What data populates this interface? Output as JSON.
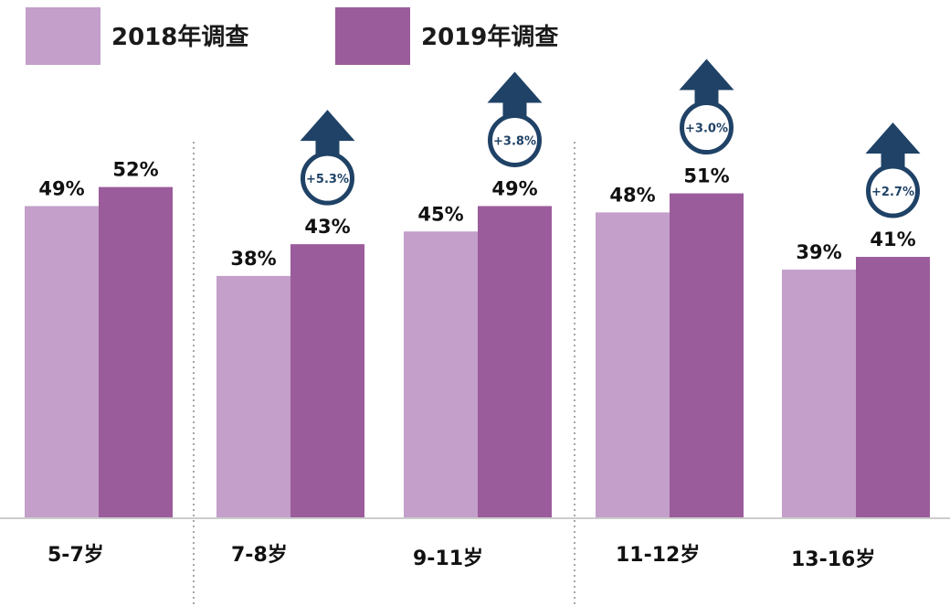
{
  "colors": {
    "series_2018": "#c39fca",
    "series_2019": "#9b5c9b",
    "arrow": "#1f4266",
    "baseline": "#cccccc",
    "divider": "#888888"
  },
  "legend": [
    {
      "label": "2018年调查"
    },
    {
      "label": "2019年调查"
    }
  ],
  "chart_data": {
    "type": "bar",
    "categories": [
      "5-7岁",
      "7-8岁",
      "9-11岁",
      "11-12岁",
      "13-16岁"
    ],
    "series": [
      {
        "name": "2018年调查",
        "values": [
          49,
          38,
          45,
          48,
          39
        ],
        "labels": [
          "49%",
          "38%",
          "45%",
          "48%",
          "39%"
        ]
      },
      {
        "name": "2019年调查",
        "values": [
          52,
          43,
          49,
          51,
          41
        ],
        "labels": [
          "52%",
          "43%",
          "49%",
          "51%",
          "41%"
        ]
      }
    ],
    "changes": [
      null,
      "+5.3%",
      "+3.8%",
      "+3.0%",
      "+2.7%"
    ],
    "ylim": [
      0,
      60
    ],
    "grid": false,
    "legend_position": "top-left"
  }
}
